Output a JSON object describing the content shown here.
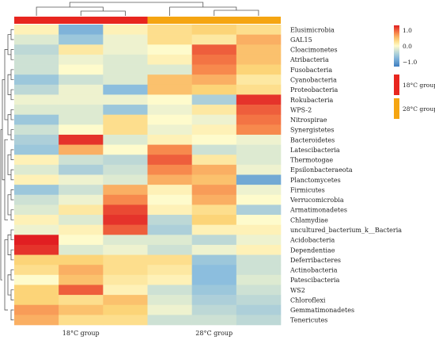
{
  "chart_data": {
    "type": "heatmap",
    "title": "",
    "xlabel": "",
    "ylabel": "",
    "groups": [
      {
        "label": "18°C group",
        "color": "#e8261f"
      },
      {
        "label": "28°C group",
        "color": "#f5a511"
      }
    ],
    "rows": [
      "Elusimicrobia",
      "GAL15",
      "Cloacimonetes",
      "Atribacteria",
      "Fusobacteria",
      "Cyanobacteria",
      "Proteobacteria",
      "Rokubacteria",
      "WPS-2",
      "Nitrospirae",
      "Synergistetes",
      "Bacteroidetes",
      "Latescibacteria",
      "Thermotogae",
      "Epsilonbacteraeota",
      "Planctomycetes",
      "Firmicutes",
      "Verrucomicrobia",
      "Armatimonadetes",
      "Chlamydiae",
      "uncultured_bacterium_k__Bacteria",
      "Acidobacteria",
      "Dependentiae",
      "Deferribacteres",
      "Actinobacteria",
      "Patescibacteria",
      "WS2",
      "Chloroflexi",
      "Gemmatimonadetes",
      "Tenericutes"
    ],
    "column_groups": [
      0,
      0,
      0,
      1,
      1,
      1
    ],
    "values": [
      [
        0.1,
        -0.8,
        0.1,
        0.3,
        0.4,
        0.3
      ],
      [
        -0.2,
        -0.6,
        -0.1,
        0.3,
        0.2,
        0.6
      ],
      [
        -0.4,
        0.2,
        -0.1,
        0.0,
        1.0,
        0.5
      ],
      [
        -0.3,
        -0.1,
        -0.2,
        0.1,
        0.9,
        0.5
      ],
      [
        -0.3,
        0.0,
        -0.2,
        -0.2,
        0.8,
        0.4
      ],
      [
        -0.6,
        -0.3,
        -0.2,
        0.5,
        0.6,
        0.2
      ],
      [
        -0.4,
        -0.1,
        -0.7,
        0.5,
        0.4,
        0.3
      ],
      [
        -0.1,
        -0.1,
        -0.1,
        0.0,
        -0.5,
        1.2
      ],
      [
        -0.2,
        -0.2,
        -0.6,
        -0.1,
        0.2,
        1.0
      ],
      [
        -0.6,
        -0.2,
        0.3,
        0.0,
        -0.1,
        0.9
      ],
      [
        -0.3,
        0.0,
        0.3,
        -0.1,
        0.1,
        0.8
      ],
      [
        -0.5,
        1.2,
        -0.2,
        0.1,
        0.0,
        -0.1
      ],
      [
        -0.6,
        0.6,
        0.0,
        0.8,
        -0.3,
        -0.2
      ],
      [
        0.1,
        -0.3,
        -0.4,
        1.0,
        0.2,
        -0.2
      ],
      [
        -0.2,
        -0.5,
        -0.3,
        0.8,
        0.6,
        -0.1
      ],
      [
        0.1,
        -0.1,
        -0.2,
        0.6,
        0.5,
        -0.9
      ],
      [
        -0.6,
        -0.3,
        0.6,
        0.1,
        0.7,
        -0.1
      ],
      [
        -0.3,
        -0.1,
        0.8,
        0.0,
        0.6,
        0.0
      ],
      [
        -0.2,
        0.2,
        1.1,
        0.1,
        0.3,
        -0.5
      ],
      [
        0.1,
        -0.2,
        1.2,
        -0.4,
        0.4,
        0.0
      ],
      [
        -0.1,
        0.1,
        1.0,
        -0.5,
        0.1,
        0.1
      ],
      [
        1.3,
        0.0,
        -0.2,
        -0.2,
        -0.4,
        -0.1
      ],
      [
        1.2,
        -0.2,
        -0.1,
        -0.3,
        -0.1,
        0.1
      ],
      [
        0.4,
        0.4,
        0.3,
        0.3,
        -0.6,
        -0.3
      ],
      [
        0.3,
        0.6,
        0.3,
        0.2,
        -0.7,
        -0.3
      ],
      [
        0.0,
        0.5,
        0.2,
        0.1,
        -0.7,
        -0.2
      ],
      [
        0.4,
        1.0,
        0.1,
        -0.3,
        -0.6,
        -0.3
      ],
      [
        0.4,
        0.3,
        0.5,
        -0.2,
        -0.5,
        -0.4
      ],
      [
        0.7,
        0.5,
        0.4,
        -0.1,
        -0.4,
        -0.5
      ],
      [
        0.6,
        0.3,
        0.3,
        -0.3,
        -0.3,
        -0.4
      ]
    ],
    "legend": {
      "scale_ticks": [
        "1.0",
        "0.0",
        "−1.0"
      ],
      "scale_values": [
        1.0,
        0.0,
        -1.0
      ],
      "scale_range": [
        -1.3,
        1.3
      ],
      "placement": "top-right"
    }
  }
}
